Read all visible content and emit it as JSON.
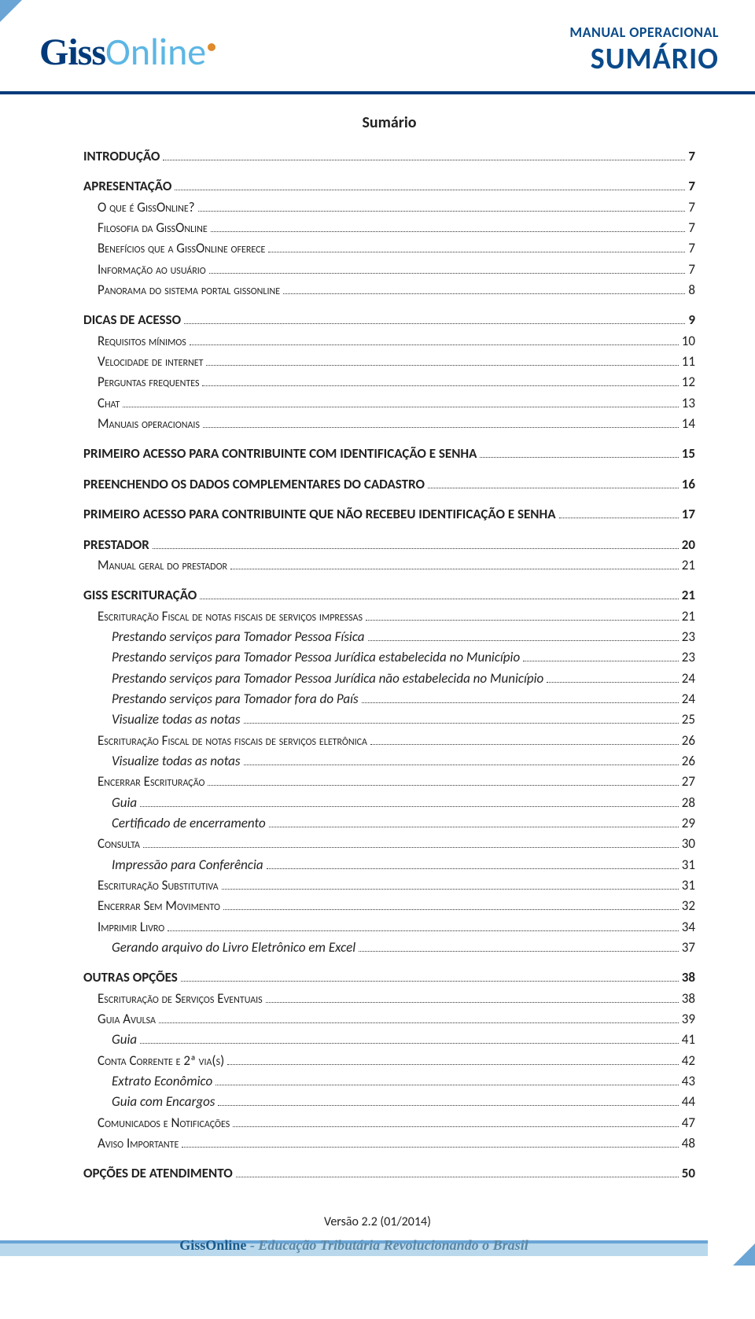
{
  "header": {
    "logo_giss": "Giss",
    "logo_online": "Online",
    "manual": "MANUAL OPERACIONAL",
    "sumario": "SUMÁRIO"
  },
  "title": "Sumário",
  "toc": [
    {
      "label": "INTRODUÇÃO",
      "page": "7",
      "level": 0,
      "bold": true,
      "gap": false
    },
    {
      "label": "APRESENTAÇÃO",
      "page": "7",
      "level": 0,
      "bold": true,
      "gap": true
    },
    {
      "label": "O que é GissOnline?",
      "page": "7",
      "level": 1,
      "smallcaps": true
    },
    {
      "label": "Filosofia da GissOnline",
      "page": "7",
      "level": 1,
      "smallcaps": true
    },
    {
      "label": "Benefícios que a GissOnline oferece",
      "page": "7",
      "level": 1,
      "smallcaps": true
    },
    {
      "label": "Informação ao usuário",
      "page": "7",
      "level": 1,
      "smallcaps": true
    },
    {
      "label": "Panorama do sistema portal gissonline",
      "page": "8",
      "level": 1,
      "smallcaps": true
    },
    {
      "label": "DICAS DE ACESSO",
      "page": "9",
      "level": 0,
      "bold": true,
      "gap": true
    },
    {
      "label": "Requisitos mínimos",
      "page": "10",
      "level": 1,
      "smallcaps": true
    },
    {
      "label": "Velocidade de internet",
      "page": "11",
      "level": 1,
      "smallcaps": true
    },
    {
      "label": "Perguntas frequentes",
      "page": "12",
      "level": 1,
      "smallcaps": true
    },
    {
      "label": "Chat",
      "page": "13",
      "level": 1,
      "smallcaps": true
    },
    {
      "label": "Manuais operacionais",
      "page": "14",
      "level": 1,
      "smallcaps": true
    },
    {
      "label": "PRIMEIRO ACESSO PARA CONTRIBUINTE COM IDENTIFICAÇÃO E SENHA",
      "page": "15",
      "level": 0,
      "bold": true,
      "gap": true
    },
    {
      "label": "PREENCHENDO OS DADOS COMPLEMENTARES DO CADASTRO",
      "page": "16",
      "level": 0,
      "bold": true,
      "gap": true
    },
    {
      "label": "PRIMEIRO ACESSO PARA CONTRIBUINTE QUE NÃO RECEBEU IDENTIFICAÇÃO E SENHA",
      "page": "17",
      "level": 0,
      "bold": true,
      "gap": true
    },
    {
      "label": "PRESTADOR",
      "page": "20",
      "level": 0,
      "bold": true,
      "gap": true
    },
    {
      "label": "Manual geral do prestador",
      "page": "21",
      "level": 1,
      "smallcaps": true
    },
    {
      "label": "GISS ESCRITURAÇÃO",
      "page": "21",
      "level": 0,
      "bold": true,
      "gap": true
    },
    {
      "label": "Escrituração Fiscal de notas fiscais de serviços impressas",
      "page": "21",
      "level": 1,
      "smallcaps": true
    },
    {
      "label": "Prestando serviços para Tomador Pessoa Física",
      "page": "23",
      "level": 2,
      "italic": true
    },
    {
      "label": "Prestando serviços para Tomador Pessoa Jurídica estabelecida no Município",
      "page": "23",
      "level": 2,
      "italic": true
    },
    {
      "label": "Prestando serviços para Tomador Pessoa Jurídica não estabelecida no Município",
      "page": "24",
      "level": 2,
      "italic": true
    },
    {
      "label": "Prestando serviços para Tomador fora do País",
      "page": "24",
      "level": 2,
      "italic": true
    },
    {
      "label": "Visualize todas as notas",
      "page": "25",
      "level": 2,
      "italic": true
    },
    {
      "label": "Escrituração Fiscal de notas fiscais de serviços eletrônica",
      "page": "26",
      "level": 1,
      "smallcaps": true
    },
    {
      "label": "Visualize todas as notas",
      "page": "26",
      "level": 2,
      "italic": true
    },
    {
      "label": "Encerrar Escrituração",
      "page": "27",
      "level": 1,
      "smallcaps": true
    },
    {
      "label": "Guia",
      "page": "28",
      "level": 2,
      "italic": true
    },
    {
      "label": "Certificado de encerramento",
      "page": "29",
      "level": 2,
      "italic": true
    },
    {
      "label": "Consulta",
      "page": "30",
      "level": 1,
      "smallcaps": true
    },
    {
      "label": "Impressão para Conferência",
      "page": "31",
      "level": 2,
      "italic": true
    },
    {
      "label": "Escrituração Substitutiva",
      "page": "31",
      "level": 1,
      "smallcaps": true
    },
    {
      "label": "Encerrar Sem Movimento",
      "page": "32",
      "level": 1,
      "smallcaps": true
    },
    {
      "label": "Imprimir Livro",
      "page": "34",
      "level": 1,
      "smallcaps": true
    },
    {
      "label": "Gerando arquivo do Livro Eletrônico em Excel",
      "page": "37",
      "level": 2,
      "italic": true
    },
    {
      "label": "OUTRAS OPÇÕES",
      "page": "38",
      "level": 0,
      "bold": true,
      "gap": true
    },
    {
      "label": "Escrituração de Serviços Eventuais",
      "page": "38",
      "level": 1,
      "smallcaps": true
    },
    {
      "label": "Guia Avulsa",
      "page": "39",
      "level": 1,
      "smallcaps": true
    },
    {
      "label": "Guia",
      "page": "41",
      "level": 2,
      "italic": true
    },
    {
      "label": "Conta Corrente e 2ª via(s)",
      "page": "42",
      "level": 1,
      "smallcaps": true
    },
    {
      "label": "Extrato Econômico",
      "page": "43",
      "level": 2,
      "italic": true
    },
    {
      "label": "Guia com Encargos",
      "page": "44",
      "level": 2,
      "italic": true
    },
    {
      "label": "Comunicados e Notificações",
      "page": "47",
      "level": 1,
      "smallcaps": true
    },
    {
      "label": "Aviso Importante",
      "page": "48",
      "level": 1,
      "smallcaps": true
    },
    {
      "label": "OPÇÕES DE ATENDIMENTO",
      "page": "50",
      "level": 0,
      "bold": true,
      "gap": true
    }
  ],
  "footer": {
    "versao": "Versão 2.2 (01/2014)",
    "brand": "GissOnline",
    "tagline": " - Educação Tributária Revolucionando o Brasil"
  },
  "colors": {
    "deep_blue": "#003a7a",
    "light_blue": "#6aa5d6",
    "cyan": "#5cb6e4",
    "band": "#b9d8ec"
  }
}
